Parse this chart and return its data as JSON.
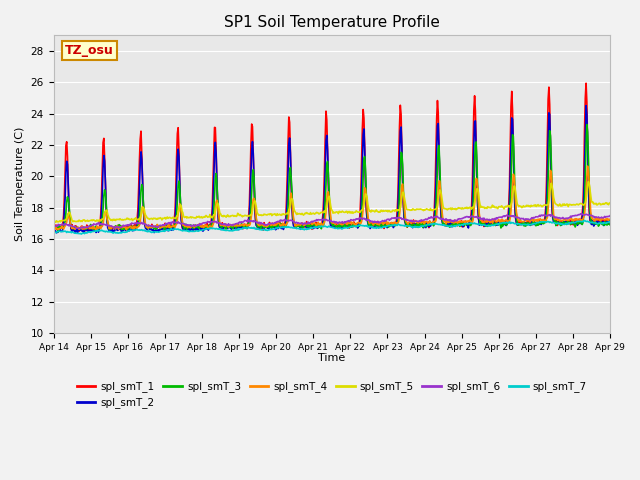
{
  "title": "SP1 Soil Temperature Profile",
  "xlabel": "Time",
  "ylabel": "Soil Temperature (C)",
  "annotation": "TZ_osu",
  "annotation_color": "#cc0000",
  "annotation_bg": "#ffffcc",
  "annotation_border": "#cc8800",
  "ylim": [
    10,
    29
  ],
  "yticks": [
    10,
    12,
    14,
    16,
    18,
    20,
    22,
    24,
    26,
    28
  ],
  "xtick_labels": [
    "Apr 14",
    "Apr 15",
    "Apr 16",
    "Apr 17",
    "Apr 18",
    "Apr 19",
    "Apr 20",
    "Apr 21",
    "Apr 22",
    "Apr 23",
    "Apr 24",
    "Apr 25",
    "Apr 26",
    "Apr 27",
    "Apr 28",
    "Apr 29"
  ],
  "plot_bg": "#e8e8e8",
  "fig_bg": "#f2f2f2",
  "series_colors": {
    "spl_smT_1": "#ff0000",
    "spl_smT_2": "#0000cc",
    "spl_smT_3": "#00bb00",
    "spl_smT_4": "#ff8800",
    "spl_smT_5": "#dddd00",
    "spl_smT_6": "#9933cc",
    "spl_smT_7": "#00cccc"
  },
  "series_linewidth": 1.2
}
